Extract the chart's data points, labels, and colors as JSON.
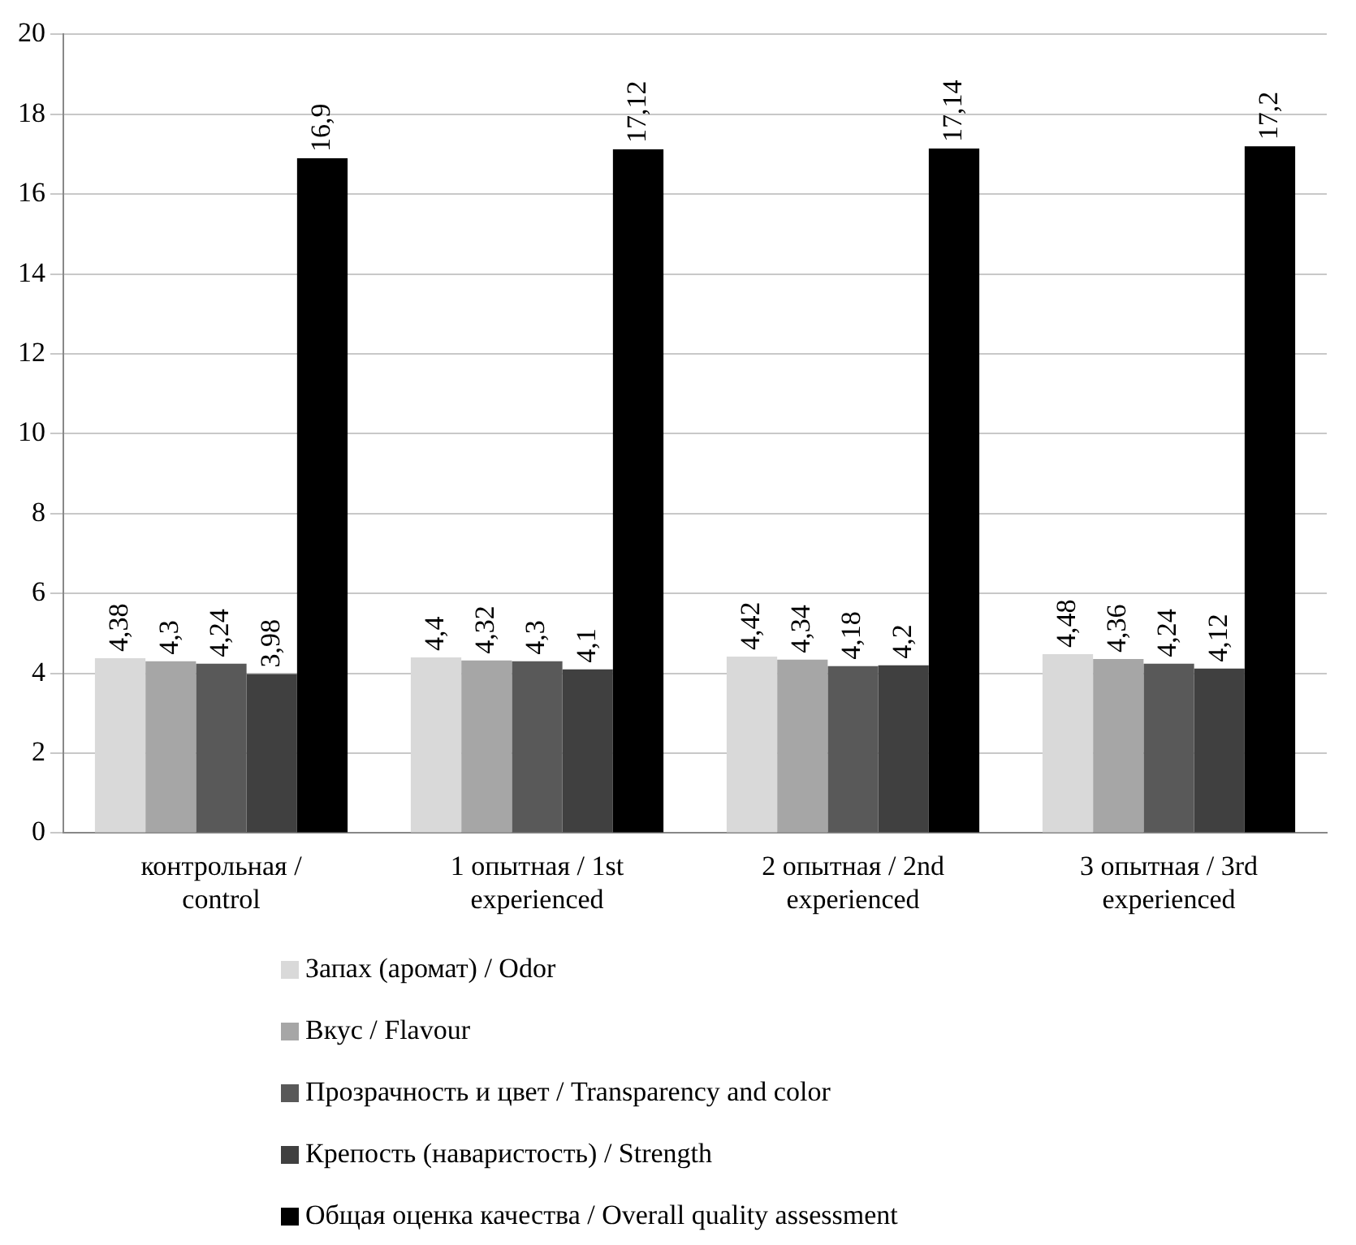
{
  "chart_data": {
    "type": "bar",
    "categories": [
      "контрольная / control",
      "1 опытная / 1st experienced",
      "2 опытная / 2nd experienced",
      "3 опытная / 3rd experienced"
    ],
    "series": [
      {
        "name": "Запах (аромат) / Odor",
        "color": "#d9d9d9",
        "values": [
          4.38,
          4.4,
          4.42,
          4.48
        ],
        "value_labels": [
          "4,38",
          "4,4",
          "4,42",
          "4,48"
        ]
      },
      {
        "name": "Вкус / Flavour",
        "color": "#a6a6a6",
        "values": [
          4.3,
          4.32,
          4.34,
          4.36
        ],
        "value_labels": [
          "4,3",
          "4,32",
          "4,34",
          "4,36"
        ]
      },
      {
        "name": "Прозрачность и цвет / Transparency and color",
        "color": "#595959",
        "values": [
          4.24,
          4.3,
          4.18,
          4.24
        ],
        "value_labels": [
          "4,24",
          "4,3",
          "4,18",
          "4,24"
        ]
      },
      {
        "name": "Крепость (наваристость) / Strength",
        "color": "#404040",
        "values": [
          3.98,
          4.1,
          4.2,
          4.12
        ],
        "value_labels": [
          "3,98",
          "4,1",
          "4,2",
          "4,12"
        ]
      },
      {
        "name": "Общая оценка качества / Overall quality assessment",
        "color": "#000000",
        "values": [
          16.9,
          17.12,
          17.14,
          17.2
        ],
        "value_labels": [
          "16,9",
          "17,12",
          "17,14",
          "17,2"
        ]
      }
    ],
    "ylim": [
      0,
      20
    ],
    "yticks": [
      0,
      2,
      4,
      6,
      8,
      10,
      12,
      14,
      16,
      18,
      20
    ],
    "grid": "y",
    "legend": "bottom"
  }
}
